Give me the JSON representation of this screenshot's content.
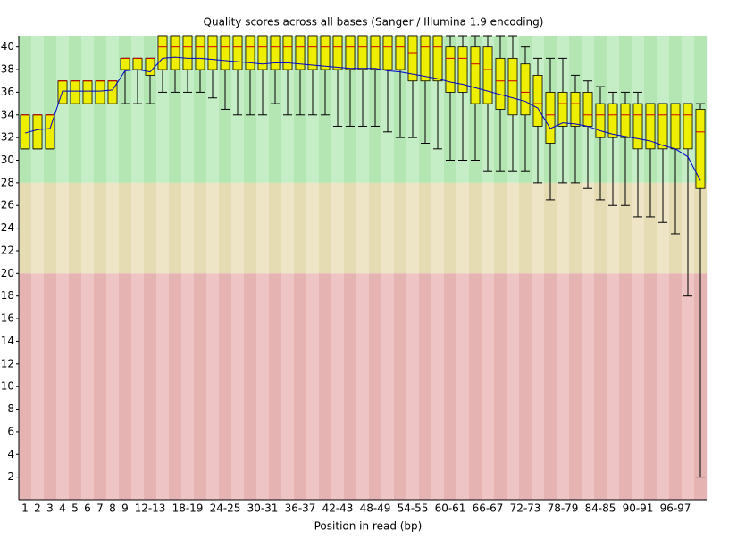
{
  "chart_data": {
    "type": "box",
    "title": "Quality scores across all bases (Sanger / Illumina 1.9 encoding)",
    "x_label": "Position in read (bp)",
    "categories": [
      "1",
      "2",
      "3",
      "4",
      "5",
      "6",
      "7",
      "8",
      "9",
      null,
      "12-13",
      null,
      null,
      "18-19",
      null,
      null,
      "24-25",
      null,
      null,
      "30-31",
      null,
      null,
      "36-37",
      null,
      null,
      "42-43",
      null,
      null,
      "48-49",
      null,
      null,
      "54-55",
      null,
      null,
      "60-61",
      null,
      null,
      "66-67",
      null,
      null,
      "72-73",
      null,
      null,
      "78-79",
      null,
      null,
      "84-85",
      null,
      null,
      "90-91",
      null,
      null,
      "96-97",
      null,
      null
    ],
    "low": [
      31,
      31,
      31,
      35,
      35,
      35,
      35,
      35,
      35,
      35,
      35,
      36,
      36,
      36,
      36,
      35.5,
      34.5,
      34,
      34,
      34,
      35,
      34,
      34,
      34,
      34,
      33,
      33,
      33,
      33,
      32.5,
      32,
      32,
      31.5,
      31,
      30,
      30,
      30,
      29,
      29,
      29,
      29,
      28,
      26.5,
      28,
      28,
      27.5,
      26.5,
      26,
      26,
      25,
      25,
      24.5,
      23.5,
      18,
      2
    ],
    "q1": [
      31,
      31,
      31,
      35,
      35,
      35,
      35,
      35,
      38,
      38,
      37.5,
      38,
      38,
      38,
      38,
      38,
      38,
      38,
      38,
      38,
      38,
      38,
      38,
      38,
      38,
      38,
      38,
      38,
      38,
      38,
      38,
      37,
      37,
      37,
      36,
      36,
      35,
      35,
      34.5,
      34,
      34,
      33,
      31.5,
      33,
      33,
      33,
      32,
      32,
      32,
      31,
      31,
      31,
      31,
      31,
      27.5
    ],
    "median": [
      34,
      34,
      34,
      37,
      37,
      37,
      37,
      37,
      39,
      39,
      39,
      40,
      40,
      40,
      40,
      40,
      40,
      40,
      40,
      40,
      40,
      40,
      40,
      40,
      40,
      40,
      40,
      40,
      40,
      40,
      40,
      39.5,
      40,
      40,
      39,
      39,
      38.5,
      38,
      37,
      37,
      36,
      35,
      34,
      35,
      35,
      34,
      34,
      34,
      34,
      34,
      34,
      34,
      34,
      34,
      32.5
    ],
    "q3": [
      34,
      34,
      34,
      37,
      37,
      37,
      37,
      37,
      39,
      39,
      39,
      41,
      41,
      41,
      41,
      41,
      41,
      41,
      41,
      41,
      41,
      41,
      41,
      41,
      41,
      41,
      41,
      41,
      41,
      41,
      41,
      41,
      41,
      41,
      40,
      40,
      40,
      40,
      39,
      39,
      38.5,
      37.5,
      36,
      36,
      36,
      36,
      35,
      35,
      35,
      35,
      35,
      35,
      35,
      35,
      34.5
    ],
    "high": [
      34,
      34,
      34,
      37,
      37,
      37,
      37,
      37,
      39,
      39,
      39,
      41,
      41,
      41,
      41,
      41,
      41,
      41,
      41,
      41,
      41,
      41,
      41,
      41,
      41,
      41,
      41,
      41,
      41,
      41,
      41,
      41,
      41,
      41,
      41,
      41,
      41,
      41,
      41,
      41,
      40,
      39,
      39,
      39,
      37.5,
      37,
      36.5,
      36,
      36,
      36,
      35,
      35,
      35,
      35,
      35
    ],
    "mean": [
      32.4,
      32.7,
      32.8,
      36.1,
      36.1,
      36.1,
      36.1,
      36.2,
      37.9,
      38,
      37.8,
      39,
      39.1,
      39,
      39,
      38.9,
      38.8,
      38.7,
      38.6,
      38.5,
      38.6,
      38.6,
      38.5,
      38.4,
      38.3,
      38.2,
      38.1,
      38.1,
      38.1,
      37.9,
      37.8,
      37.6,
      37.4,
      37.2,
      36.9,
      36.7,
      36.4,
      36.1,
      35.8,
      35.5,
      35.2,
      34.6,
      32.8,
      33.3,
      33.2,
      33,
      32.6,
      32.3,
      32.1,
      31.9,
      31.7,
      31.3,
      31,
      30.3,
      28.2
    ],
    "box_color": "#eeee00",
    "median_color": "#cc0000",
    "mean_color": "#0000cc",
    "zones": [
      {
        "from": 28,
        "to": 41,
        "color": "#b3e6b3",
        "alt_color": "#c6eec6"
      },
      {
        "from": 20,
        "to": 28,
        "color": "#e6dcb3",
        "alt_color": "#eee4c6"
      },
      {
        "from": 0,
        "to": 20,
        "color": "#e6b3b3",
        "alt_color": "#eec4c4"
      }
    ],
    "ylim": [
      0,
      41
    ],
    "yticks": [
      2,
      4,
      6,
      8,
      10,
      12,
      14,
      16,
      18,
      20,
      22,
      24,
      26,
      28,
      30,
      32,
      34,
      36,
      38,
      40
    ]
  }
}
